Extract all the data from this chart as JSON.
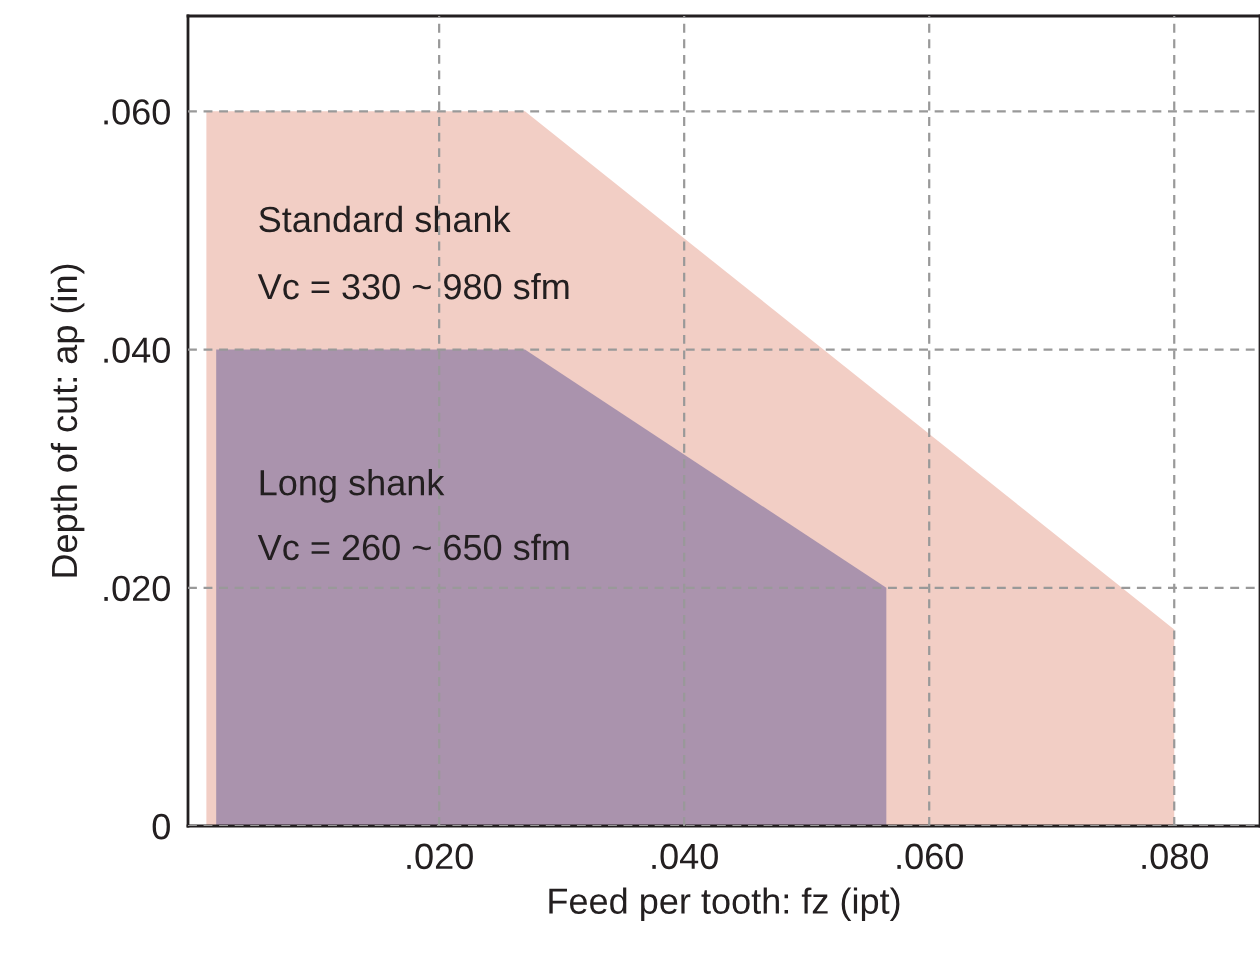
{
  "chart_data": {
    "type": "area",
    "xlabel": "Feed per tooth: fz (ipt)",
    "ylabel": "Depth of cut: ap (in)",
    "series": [
      {
        "color": "#f2cec5",
        "x": [
          0.001,
          0.027,
          0.08
        ],
        "values": [
          0.06,
          0.06,
          0.0165
        ]
      },
      {
        "color": "#aa93ad",
        "x": [
          0.0018,
          0.027,
          0.0565
        ],
        "values": [
          0.04,
          0.04,
          0.02
        ]
      }
    ],
    "annotations": [
      "Standard shank",
      "Vc = 330 ~ 980 sfm",
      "Long shank",
      "Vc = 260 ~ 650 sfm"
    ],
    "xlim": [
      -0.0005,
      0.087
    ],
    "ylim": [
      0,
      0.068
    ],
    "xticks": [
      {
        "value": 0.02,
        "label": ".020"
      },
      {
        "value": 0.04,
        "label": ".040"
      },
      {
        "value": 0.06,
        "label": ".060"
      },
      {
        "value": 0.08,
        "label": ".080"
      }
    ],
    "yticks": [
      0,
      {
        "value": 0.02,
        "label": ".020"
      },
      {
        "value": 0.04,
        "label": ".040"
      },
      {
        "value": 0.06,
        "label": ".060"
      }
    ],
    "grid": true,
    "line_style": "dashed"
  }
}
